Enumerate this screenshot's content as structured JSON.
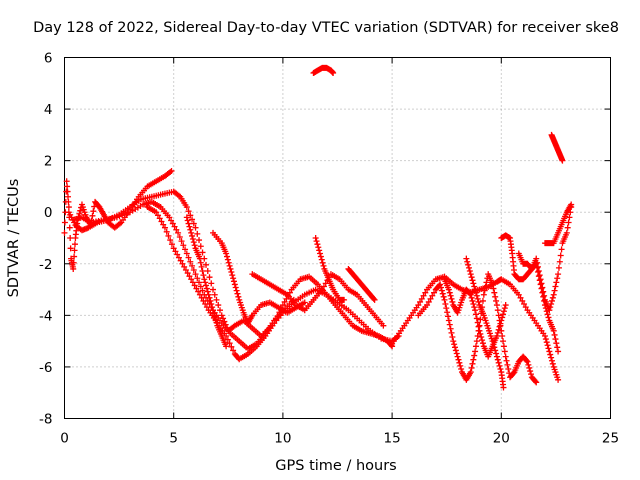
{
  "chart_data": {
    "type": "scatter",
    "title": "Day 128 of 2022, Sidereal Day-to-day VTEC variation (SDTVAR) for receiver ske8",
    "xlabel": "GPS time / hours",
    "ylabel": "SDTVAR / TECUs",
    "xlim": [
      0,
      25
    ],
    "ylim": [
      -8,
      6
    ],
    "xticks": [
      "0",
      "5",
      "10",
      "15",
      "20",
      "25"
    ],
    "yticks": [
      "-8",
      "-6",
      "-4",
      "-2",
      "0",
      "2",
      "4",
      "6"
    ],
    "grid": true,
    "marker": "plus",
    "color": "#ff0000",
    "series": [
      {
        "points": [
          [
            0.0,
            -0.8
          ],
          [
            0.1,
            1.2
          ],
          [
            0.2,
            0.2
          ],
          [
            0.3,
            -1.8
          ],
          [
            0.4,
            -2.2
          ],
          [
            0.5,
            -1.0
          ],
          [
            0.6,
            -0.3
          ],
          [
            0.8,
            0.3
          ],
          [
            1.0,
            -0.2
          ],
          [
            1.2,
            -0.5
          ],
          [
            1.4,
            0.4
          ],
          [
            1.6,
            0.2
          ],
          [
            1.8,
            -0.1
          ],
          [
            2.0,
            -0.4
          ],
          [
            2.3,
            -0.6
          ],
          [
            2.6,
            -0.4
          ],
          [
            3.0,
            0.1
          ],
          [
            3.4,
            0.6
          ],
          [
            3.8,
            1.0
          ],
          [
            4.2,
            1.2
          ],
          [
            4.6,
            1.4
          ],
          [
            4.9,
            1.6
          ]
        ]
      },
      {
        "points": [
          [
            0.2,
            0.0
          ],
          [
            0.5,
            -0.5
          ],
          [
            0.8,
            -0.7
          ],
          [
            1.1,
            -0.6
          ],
          [
            1.5,
            -0.4
          ],
          [
            2.0,
            -0.3
          ],
          [
            2.5,
            -0.1
          ],
          [
            3.0,
            0.2
          ],
          [
            3.5,
            0.5
          ],
          [
            4.0,
            0.6
          ],
          [
            4.5,
            0.7
          ],
          [
            5.0,
            0.8
          ],
          [
            5.3,
            0.6
          ],
          [
            5.6,
            0.2
          ],
          [
            6.0,
            -0.6
          ],
          [
            6.4,
            -1.8
          ],
          [
            6.8,
            -3.0
          ],
          [
            7.2,
            -4.0
          ],
          [
            7.5,
            -4.6
          ],
          [
            7.8,
            -4.4
          ],
          [
            8.2,
            -4.2
          ],
          [
            8.6,
            -4.5
          ],
          [
            9.0,
            -4.8
          ],
          [
            9.5,
            -4.4
          ],
          [
            10.0,
            -3.9
          ],
          [
            10.5,
            -3.5
          ],
          [
            11.0,
            -3.2
          ],
          [
            11.5,
            -3.0
          ],
          [
            12.0,
            -3.2
          ],
          [
            12.5,
            -3.5
          ],
          [
            13.0,
            -3.8
          ],
          [
            13.5,
            -4.2
          ],
          [
            14.0,
            -4.6
          ],
          [
            14.5,
            -4.9
          ],
          [
            15.0,
            -5.0
          ],
          [
            15.3,
            -4.8
          ]
        ]
      },
      {
        "points": [
          [
            0.4,
            -0.3
          ],
          [
            0.8,
            -0.2
          ],
          [
            1.2,
            -0.4
          ],
          [
            1.8,
            -0.3
          ],
          [
            2.4,
            -0.2
          ],
          [
            3.0,
            0.0
          ],
          [
            3.6,
            0.3
          ],
          [
            4.0,
            0.4
          ],
          [
            4.4,
            0.2
          ],
          [
            4.8,
            -0.2
          ],
          [
            5.2,
            -0.8
          ],
          [
            5.6,
            -1.6
          ],
          [
            6.0,
            -2.4
          ],
          [
            6.4,
            -3.2
          ],
          [
            6.8,
            -3.8
          ],
          [
            7.2,
            -4.3
          ],
          [
            7.6,
            -4.7
          ],
          [
            8.0,
            -5.0
          ],
          [
            8.4,
            -5.3
          ],
          [
            8.8,
            -5.1
          ],
          [
            9.2,
            -4.7
          ],
          [
            9.6,
            -4.2
          ],
          [
            10.0,
            -3.8
          ],
          [
            10.5,
            -3.4
          ]
        ]
      },
      {
        "points": [
          [
            3.8,
            0.2
          ],
          [
            4.2,
            0.0
          ],
          [
            4.6,
            -0.6
          ],
          [
            5.0,
            -1.4
          ],
          [
            5.4,
            -2.0
          ],
          [
            5.8,
            -2.6
          ],
          [
            6.2,
            -3.2
          ],
          [
            6.6,
            -3.8
          ],
          [
            7.0,
            -4.3
          ],
          [
            7.4,
            -4.8
          ],
          [
            7.8,
            -5.5
          ],
          [
            8.0,
            -5.7
          ],
          [
            8.4,
            -5.5
          ],
          [
            8.8,
            -5.2
          ],
          [
            9.2,
            -4.8
          ],
          [
            9.6,
            -4.3
          ],
          [
            10.0,
            -3.6
          ],
          [
            10.4,
            -3.0
          ],
          [
            10.8,
            -2.6
          ],
          [
            11.2,
            -2.5
          ],
          [
            11.6,
            -2.8
          ],
          [
            12.0,
            -3.2
          ],
          [
            12.4,
            -3.6
          ],
          [
            12.8,
            -4.0
          ],
          [
            13.2,
            -4.4
          ],
          [
            13.6,
            -4.6
          ],
          [
            14.0,
            -4.7
          ],
          [
            14.4,
            -4.8
          ],
          [
            14.8,
            -5.0
          ],
          [
            15.0,
            -5.2
          ]
        ]
      },
      {
        "points": [
          [
            5.6,
            -0.2
          ],
          [
            5.8,
            -0.8
          ],
          [
            6.0,
            -1.4
          ],
          [
            6.2,
            -1.8
          ],
          [
            6.4,
            -2.6
          ],
          [
            6.6,
            -3.2
          ],
          [
            6.8,
            -3.8
          ],
          [
            7.0,
            -4.4
          ],
          [
            7.2,
            -4.8
          ],
          [
            7.4,
            -5.2
          ]
        ]
      },
      {
        "points": [
          [
            6.8,
            -0.8
          ],
          [
            7.2,
            -1.2
          ],
          [
            7.4,
            -1.6
          ],
          [
            7.6,
            -2.2
          ],
          [
            7.8,
            -2.8
          ],
          [
            8.0,
            -3.4
          ],
          [
            8.2,
            -3.9
          ],
          [
            8.4,
            -4.3
          ],
          [
            8.6,
            -4.0
          ],
          [
            9.0,
            -3.6
          ],
          [
            9.4,
            -3.5
          ],
          [
            9.8,
            -3.7
          ],
          [
            10.2,
            -3.9
          ],
          [
            10.6,
            -3.7
          ],
          [
            11.0,
            -3.5
          ]
        ]
      },
      {
        "points": [
          [
            8.6,
            -2.4
          ],
          [
            9.0,
            -2.6
          ],
          [
            9.4,
            -2.8
          ],
          [
            9.8,
            -3.0
          ],
          [
            10.2,
            -3.2
          ],
          [
            10.6,
            -3.6
          ],
          [
            11.0,
            -3.8
          ],
          [
            11.4,
            -3.4
          ],
          [
            11.8,
            -3.0
          ],
          [
            12.2,
            -2.4
          ],
          [
            12.6,
            -2.6
          ],
          [
            13.0,
            -3.0
          ],
          [
            13.4,
            -3.2
          ],
          [
            13.8,
            -3.6
          ],
          [
            14.2,
            -4.0
          ],
          [
            14.6,
            -4.4
          ]
        ]
      },
      {
        "points": [
          [
            11.5,
            -1.0
          ],
          [
            11.7,
            -1.6
          ],
          [
            11.9,
            -2.2
          ],
          [
            12.1,
            -2.6
          ],
          [
            12.3,
            -3.0
          ],
          [
            12.6,
            -3.4
          ],
          [
            12.8,
            -3.4
          ]
        ]
      },
      {
        "points": [
          [
            13.0,
            -2.2
          ],
          [
            13.2,
            -2.4
          ],
          [
            13.4,
            -2.6
          ],
          [
            13.6,
            -2.8
          ],
          [
            13.8,
            -3.0
          ],
          [
            14.0,
            -3.2
          ],
          [
            14.2,
            -3.4
          ]
        ]
      },
      {
        "points": [
          [
            11.4,
            5.4
          ],
          [
            11.6,
            5.5
          ],
          [
            11.8,
            5.6
          ],
          [
            12.0,
            5.6
          ],
          [
            12.2,
            5.5
          ],
          [
            12.3,
            5.4
          ]
        ]
      },
      {
        "points": [
          [
            15.0,
            -5.1
          ],
          [
            15.4,
            -4.6
          ],
          [
            15.8,
            -4.1
          ],
          [
            16.2,
            -3.6
          ],
          [
            16.6,
            -3.0
          ],
          [
            17.0,
            -2.6
          ],
          [
            17.4,
            -2.5
          ],
          [
            17.8,
            -2.8
          ],
          [
            18.2,
            -3.0
          ],
          [
            18.6,
            -3.1
          ],
          [
            19.0,
            -3.0
          ],
          [
            19.4,
            -2.9
          ],
          [
            19.8,
            -2.7
          ],
          [
            20.0,
            -2.6
          ],
          [
            20.4,
            -2.8
          ],
          [
            20.8,
            -3.2
          ],
          [
            21.2,
            -3.8
          ],
          [
            21.6,
            -4.3
          ],
          [
            22.0,
            -4.8
          ],
          [
            22.2,
            -5.4
          ],
          [
            22.4,
            -6.0
          ],
          [
            22.6,
            -6.5
          ]
        ]
      },
      {
        "points": [
          [
            16.2,
            -4.0
          ],
          [
            16.6,
            -3.6
          ],
          [
            17.0,
            -3.0
          ],
          [
            17.2,
            -2.8
          ],
          [
            17.4,
            -3.4
          ],
          [
            17.6,
            -4.2
          ],
          [
            17.8,
            -5.0
          ],
          [
            18.0,
            -5.6
          ],
          [
            18.2,
            -6.2
          ],
          [
            18.4,
            -6.5
          ],
          [
            18.6,
            -6.2
          ],
          [
            18.8,
            -5.4
          ],
          [
            19.0,
            -4.4
          ],
          [
            19.2,
            -3.2
          ],
          [
            19.4,
            -2.4
          ],
          [
            19.6,
            -2.8
          ],
          [
            19.8,
            -3.6
          ],
          [
            20.0,
            -4.6
          ],
          [
            20.2,
            -5.6
          ],
          [
            20.4,
            -6.4
          ],
          [
            20.6,
            -6.2
          ],
          [
            20.8,
            -5.8
          ],
          [
            21.0,
            -5.6
          ],
          [
            21.2,
            -5.8
          ],
          [
            21.4,
            -6.4
          ],
          [
            21.6,
            -6.6
          ]
        ]
      },
      {
        "points": [
          [
            17.4,
            -2.6
          ],
          [
            17.6,
            -3.0
          ],
          [
            17.8,
            -3.6
          ],
          [
            18.0,
            -3.9
          ],
          [
            18.2,
            -3.4
          ],
          [
            18.4,
            -3.0
          ],
          [
            18.6,
            -3.2
          ],
          [
            18.8,
            -3.8
          ],
          [
            19.0,
            -4.6
          ],
          [
            19.2,
            -5.2
          ],
          [
            19.4,
            -5.6
          ],
          [
            19.6,
            -5.2
          ],
          [
            19.8,
            -4.8
          ],
          [
            20.0,
            -4.2
          ],
          [
            20.2,
            -3.6
          ]
        ]
      },
      {
        "points": [
          [
            18.4,
            -1.8
          ],
          [
            18.6,
            -2.4
          ],
          [
            18.8,
            -3.0
          ],
          [
            19.0,
            -3.6
          ],
          [
            19.2,
            -4.0
          ],
          [
            19.4,
            -4.5
          ],
          [
            19.6,
            -5.0
          ],
          [
            19.8,
            -5.6
          ],
          [
            20.0,
            -6.2
          ],
          [
            20.1,
            -6.8
          ]
        ]
      },
      {
        "points": [
          [
            20.0,
            -1.0
          ],
          [
            20.2,
            -0.9
          ],
          [
            20.4,
            -1.0
          ],
          [
            20.5,
            -1.6
          ],
          [
            20.6,
            -2.4
          ],
          [
            20.8,
            -2.6
          ],
          [
            21.0,
            -2.6
          ],
          [
            21.2,
            -2.4
          ],
          [
            21.4,
            -2.2
          ],
          [
            21.6,
            -1.8
          ],
          [
            21.8,
            -2.6
          ],
          [
            22.0,
            -3.4
          ],
          [
            22.2,
            -3.8
          ],
          [
            22.4,
            -3.2
          ],
          [
            22.6,
            -2.4
          ],
          [
            22.8,
            -1.2
          ],
          [
            23.0,
            -0.8
          ],
          [
            23.2,
            0.2
          ]
        ]
      },
      {
        "points": [
          [
            20.8,
            -1.6
          ],
          [
            21.0,
            -2.0
          ],
          [
            21.2,
            -2.0
          ],
          [
            21.4,
            -2.2
          ],
          [
            21.6,
            -2.0
          ],
          [
            21.8,
            -2.8
          ],
          [
            22.0,
            -3.6
          ],
          [
            22.2,
            -4.2
          ],
          [
            22.4,
            -4.6
          ],
          [
            22.6,
            -5.4
          ]
        ]
      },
      {
        "points": [
          [
            22.0,
            -1.2
          ],
          [
            22.2,
            -1.2
          ],
          [
            22.4,
            -1.2
          ],
          [
            22.6,
            -0.8
          ],
          [
            22.8,
            -0.4
          ],
          [
            23.0,
            0.0
          ],
          [
            23.2,
            0.3
          ]
        ]
      },
      {
        "points": [
          [
            22.3,
            3.0
          ],
          [
            22.4,
            2.8
          ],
          [
            22.5,
            2.6
          ],
          [
            22.6,
            2.4
          ],
          [
            22.7,
            2.2
          ],
          [
            22.8,
            2.0
          ]
        ]
      }
    ]
  }
}
